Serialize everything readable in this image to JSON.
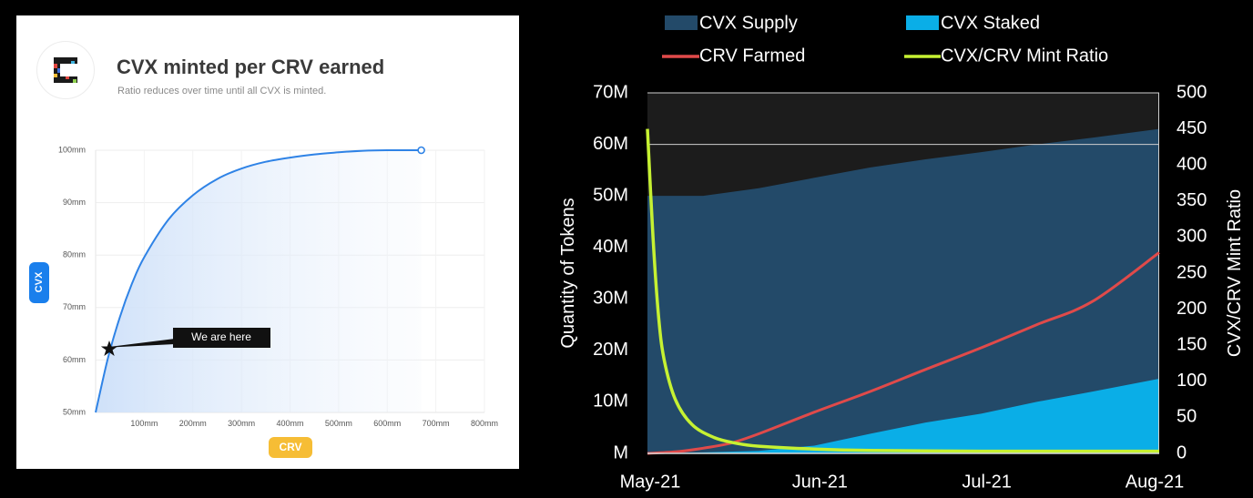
{
  "left": {
    "title": "CVX minted per CRV earned",
    "subtitle": "Ratio reduces over time until all CVX is minted.",
    "callout": "We are here"
  },
  "colors": {
    "left_curve": "#2f83e6",
    "left_fill": "#dbe9fb",
    "cvx_badge": "#1a7fec",
    "crv_badge": "#f6bd35",
    "cvx_supply": "#234a69",
    "cvx_staked": "#0aaee7",
    "crv_farmed": "#e04a4a",
    "mint_ratio": "#c6f132",
    "plot_bg": "#1c1c1c"
  },
  "chart_data": [
    {
      "type": "line",
      "title": "CVX minted per CRV earned",
      "subtitle": "Ratio reduces over time until all CVX is minted.",
      "xlabel": "CRV",
      "ylabel": "CVX",
      "xlim": [
        0,
        800
      ],
      "ylim": [
        50,
        100
      ],
      "x_ticks": [
        "100mm",
        "200mm",
        "300mm",
        "400mm",
        "500mm",
        "600mm",
        "700mm",
        "800mm"
      ],
      "y_ticks": [
        "50mm",
        "60mm",
        "70mm",
        "80mm",
        "90mm",
        "100mm"
      ],
      "series": [
        {
          "x": [
            0,
            25,
            50,
            75,
            100,
            150,
            200,
            250,
            300,
            350,
            400,
            450,
            500,
            550,
            600,
            670
          ],
          "values": [
            50,
            60.2,
            68.2,
            74.6,
            79.6,
            86.8,
            91.4,
            94.5,
            96.5,
            97.8,
            98.6,
            99.2,
            99.6,
            99.9,
            100,
            100
          ]
        }
      ],
      "annotations": [
        {
          "text": "We are here",
          "x": 25,
          "y": 62
        }
      ],
      "grid": true
    },
    {
      "type": "area",
      "x_ticks": [
        "May-21",
        "Jun-21",
        "Jul-21",
        "Aug-21"
      ],
      "x_days": [
        0,
        31,
        61,
        92
      ],
      "xlim": [
        0,
        92
      ],
      "ylabel": "Quantity of Tokens",
      "ylim": [
        0,
        70
      ],
      "y_ticks": [
        "M",
        "10M",
        "20M",
        "30M",
        "40M",
        "50M",
        "60M",
        "70M"
      ],
      "y2label": "CVX/CRV Mint Ratio",
      "y2lim": [
        0,
        500
      ],
      "y2_ticks": [
        "0",
        "50",
        "100",
        "150",
        "200",
        "250",
        "300",
        "350",
        "400",
        "450",
        "500"
      ],
      "legend": [
        "CVX Supply",
        "CVX Staked",
        "CRV Farmed",
        "CVX/CRV Mint Ratio"
      ],
      "legend_position": "top",
      "series": [
        {
          "name": "CVX Supply",
          "x": [
            0,
            10,
            20,
            30,
            40,
            50,
            60,
            70,
            80,
            92
          ],
          "values": [
            50,
            50,
            51.5,
            53.5,
            55.5,
            57.1,
            58.5,
            60,
            61.3,
            63
          ]
        },
        {
          "name": "CVX Staked",
          "x": [
            0,
            10,
            20,
            30,
            40,
            50,
            60,
            70,
            80,
            92
          ],
          "values": [
            0,
            0.2,
            0.5,
            1.5,
            3.8,
            6.0,
            7.7,
            10.0,
            12.0,
            14.5
          ]
        },
        {
          "name": "CRV Farmed",
          "x": [
            0,
            5,
            10,
            15,
            20,
            30,
            40,
            50,
            60,
            70,
            80,
            92
          ],
          "values": [
            0,
            0.3,
            1,
            2,
            3.8,
            8,
            12,
            16.3,
            20.5,
            25,
            29.5,
            39
          ]
        },
        {
          "name": "CVX/CRV Mint Ratio",
          "x": [
            0,
            1,
            2,
            3,
            5,
            8,
            12,
            16,
            20,
            30,
            40,
            60,
            92
          ],
          "values": [
            450,
            300,
            190,
            130,
            75,
            40,
            22,
            14,
            10,
            6,
            4,
            3,
            3
          ]
        }
      ]
    }
  ]
}
